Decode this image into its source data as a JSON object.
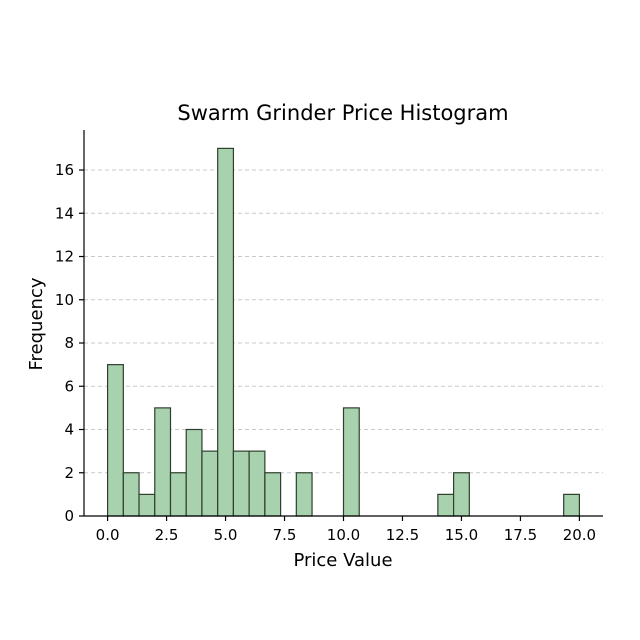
{
  "chart_data": {
    "type": "bar",
    "title": "Swarm Grinder Price Histogram",
    "xlabel": "Price Value",
    "ylabel": "Frequency",
    "xlim": [
      -1,
      21
    ],
    "ylim": [
      0,
      17.85
    ],
    "bin_width": 0.6667,
    "x_ticks": [
      0.0,
      2.5,
      5.0,
      7.5,
      10.0,
      12.5,
      15.0,
      17.5,
      20.0
    ],
    "x_tick_labels": [
      "0.0",
      "2.5",
      "5.0",
      "7.5",
      "10.0",
      "12.5",
      "15.0",
      "17.5",
      "20.0"
    ],
    "y_ticks": [
      0,
      2,
      4,
      6,
      8,
      10,
      12,
      14,
      16
    ],
    "y_tick_labels": [
      "0",
      "2",
      "4",
      "6",
      "8",
      "10",
      "12",
      "14",
      "16"
    ],
    "grid": "y-dashed",
    "bar_color": "#a8d1ae",
    "edge_color": "#2f3f2f",
    "bins": [
      {
        "start": 0.0,
        "count": 7
      },
      {
        "start": 0.667,
        "count": 2
      },
      {
        "start": 1.333,
        "count": 1
      },
      {
        "start": 2.0,
        "count": 5
      },
      {
        "start": 2.667,
        "count": 2
      },
      {
        "start": 3.333,
        "count": 4
      },
      {
        "start": 4.0,
        "count": 3
      },
      {
        "start": 4.667,
        "count": 17
      },
      {
        "start": 5.333,
        "count": 3
      },
      {
        "start": 6.0,
        "count": 3
      },
      {
        "start": 6.667,
        "count": 2
      },
      {
        "start": 8.0,
        "count": 2
      },
      {
        "start": 10.0,
        "count": 5
      },
      {
        "start": 14.0,
        "count": 1
      },
      {
        "start": 14.667,
        "count": 2
      },
      {
        "start": 19.333,
        "count": 1
      }
    ]
  }
}
